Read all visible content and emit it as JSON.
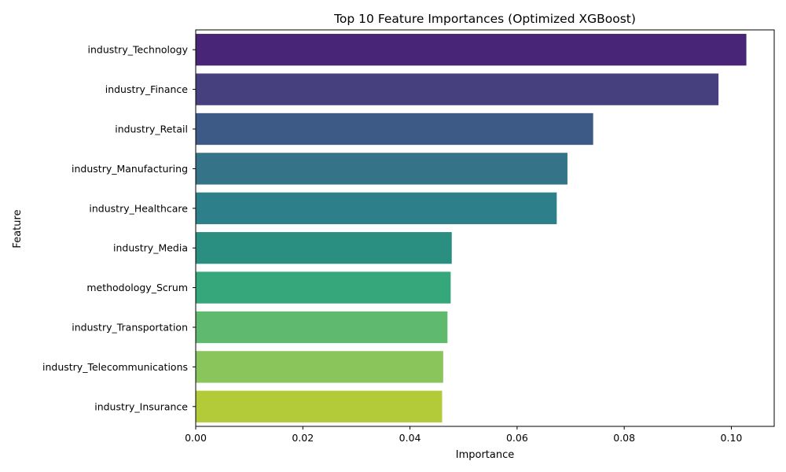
{
  "chart_data": {
    "type": "bar",
    "orientation": "horizontal",
    "title": "Top 10 Feature Importances (Optimized XGBoost)",
    "xlabel": "Importance",
    "ylabel": "Feature",
    "xlim": [
      0,
      0.108
    ],
    "xticks": [
      0.0,
      0.02,
      0.04,
      0.06,
      0.08,
      0.1
    ],
    "xtick_labels": [
      "0.00",
      "0.02",
      "0.04",
      "0.06",
      "0.08",
      "0.10"
    ],
    "grid": false,
    "legend": "none",
    "categories": [
      "industry_Technology",
      "industry_Finance",
      "industry_Retail",
      "industry_Manufacturing",
      "industry_Healthcare",
      "industry_Media",
      "methodology_Scrum",
      "industry_Transportation",
      "industry_Telecommunications",
      "industry_Insurance"
    ],
    "values": [
      0.1028,
      0.0976,
      0.0742,
      0.0694,
      0.0674,
      0.0478,
      0.0476,
      0.047,
      0.0462,
      0.046
    ],
    "colors": [
      "#482576",
      "#46407f",
      "#3d5a86",
      "#357389",
      "#2d7f89",
      "#2a8e80",
      "#36a77b",
      "#5fb96f",
      "#89c55b",
      "#b3ca39"
    ]
  }
}
